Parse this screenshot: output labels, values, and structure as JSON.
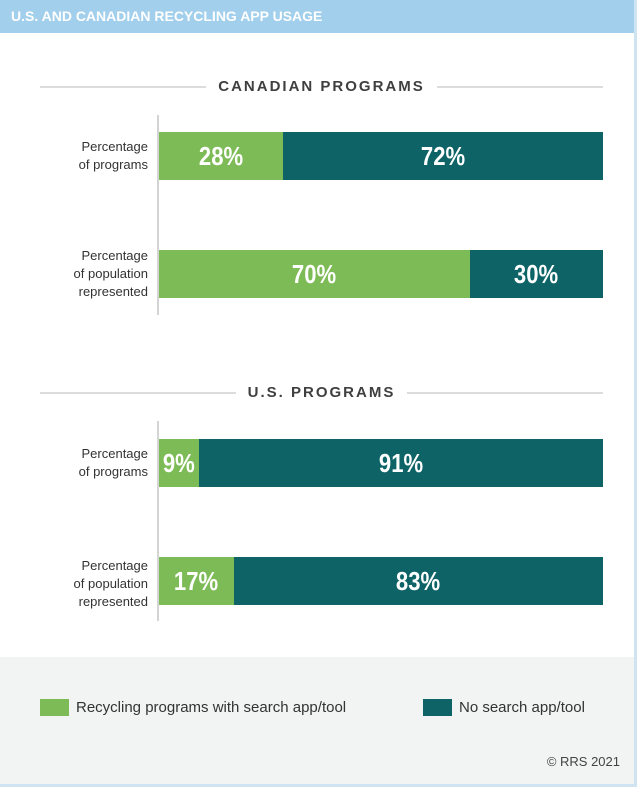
{
  "header": {
    "title": "U.S. AND CANADIAN RECYCLING APP USAGE"
  },
  "colors": {
    "header": "#a2cfeb",
    "with_app": "#7dbb57",
    "no_app": "#0e6367"
  },
  "legend": [
    {
      "label": "Recycling programs with  search app/tool",
      "color": "#7dbb57"
    },
    {
      "label": "No search app/tool",
      "color": "#0e6367"
    }
  ],
  "copyright": "© RRS 2021",
  "chart_data": {
    "type": "bar",
    "orientation": "horizontal-stacked-100",
    "title": "U.S. AND CANADIAN RECYCLING APP USAGE",
    "series_names": [
      "Recycling programs with  search app/tool",
      "No search app/tool"
    ],
    "groups": [
      {
        "title": "CANADIAN PROGRAMS",
        "rows": [
          {
            "label_lines": [
              "Percentage",
              "of programs"
            ],
            "values": [
              28,
              72
            ],
            "labels": [
              "28%",
              "72%"
            ]
          },
          {
            "label_lines": [
              "Percentage",
              "of population",
              "represented"
            ],
            "values": [
              70,
              30
            ],
            "labels": [
              "70%",
              "30%"
            ]
          }
        ]
      },
      {
        "title": "U.S. PROGRAMS",
        "rows": [
          {
            "label_lines": [
              "Percentage",
              "of programs"
            ],
            "values": [
              9,
              91
            ],
            "labels": [
              "9%",
              "91%"
            ]
          },
          {
            "label_lines": [
              "Percentage",
              "of population",
              "represented"
            ],
            "values": [
              17,
              83
            ],
            "labels": [
              "17%",
              "83%"
            ]
          }
        ]
      }
    ],
    "xlim": [
      0,
      100
    ],
    "legend_position": "bottom"
  }
}
